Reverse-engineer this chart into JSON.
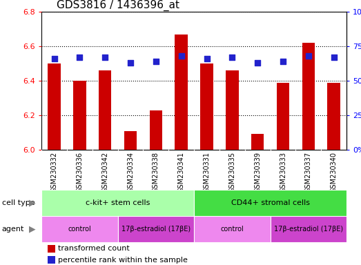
{
  "title": "GDS3816 / 1436396_at",
  "samples": [
    "GSM230332",
    "GSM230336",
    "GSM230342",
    "GSM230334",
    "GSM230338",
    "GSM230341",
    "GSM230331",
    "GSM230335",
    "GSM230339",
    "GSM230333",
    "GSM230337",
    "GSM230340"
  ],
  "transformed_count": [
    6.5,
    6.4,
    6.46,
    6.11,
    6.23,
    6.67,
    6.5,
    6.46,
    6.09,
    6.39,
    6.62,
    6.39
  ],
  "percentile_rank": [
    66,
    67,
    67,
    63,
    64,
    68,
    66,
    67,
    63,
    64,
    68,
    67
  ],
  "ylim_left": [
    6.0,
    6.8
  ],
  "ylim_right": [
    0,
    100
  ],
  "yticks_left": [
    6.0,
    6.2,
    6.4,
    6.6,
    6.8
  ],
  "yticks_right": [
    0,
    25,
    50,
    75,
    100
  ],
  "bar_color": "#cc0000",
  "dot_color": "#2222cc",
  "cell_type_groups": [
    {
      "label": "c-kit+ stem cells",
      "start": 0,
      "end": 5,
      "color": "#aaffaa"
    },
    {
      "label": "CD44+ stromal cells",
      "start": 6,
      "end": 11,
      "color": "#44dd44"
    }
  ],
  "agent_groups": [
    {
      "label": "control",
      "start": 0,
      "end": 2,
      "color": "#ee88ee"
    },
    {
      "label": "17β-estradiol (17βE)",
      "start": 3,
      "end": 5,
      "color": "#cc44cc"
    },
    {
      "label": "control",
      "start": 6,
      "end": 8,
      "color": "#ee88ee"
    },
    {
      "label": "17β-estradiol (17βE)",
      "start": 9,
      "end": 11,
      "color": "#cc44cc"
    }
  ],
  "cell_type_label": "cell type",
  "agent_label": "agent",
  "legend_red_label": "transformed count",
  "legend_blue_label": "percentile rank within the sample",
  "bar_width": 0.5,
  "dot_size": 40,
  "title_fontsize": 11,
  "tick_bg_color": "#cccccc",
  "xtick_fontsize": 7
}
